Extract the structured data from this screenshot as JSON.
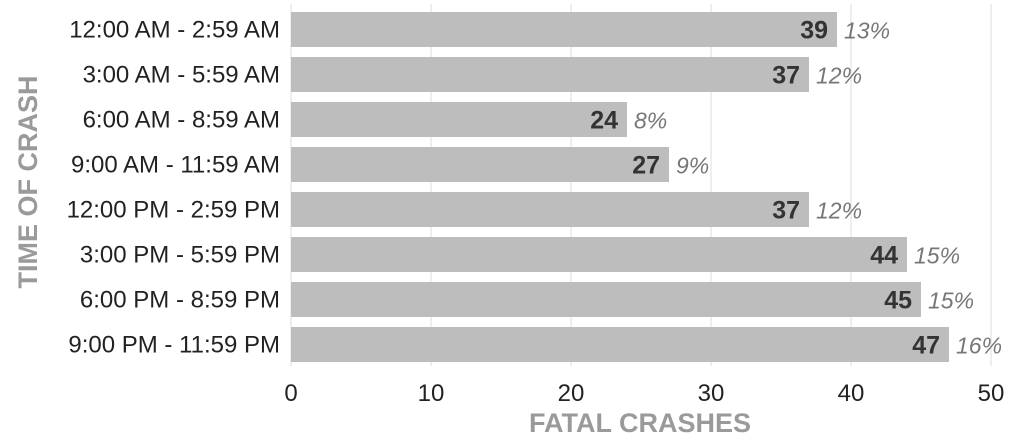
{
  "chart_data": {
    "type": "bar",
    "orientation": "horizontal",
    "categories": [
      "12:00 AM - 2:59 AM",
      "3:00 AM - 5:59 AM",
      "6:00 AM - 8:59 AM",
      "9:00 AM - 11:59 AM",
      "12:00 PM - 2:59 PM",
      "3:00 PM - 5:59 PM",
      "6:00 PM - 8:59 PM",
      "9:00 PM - 11:59 PM"
    ],
    "values": [
      39,
      37,
      24,
      27,
      37,
      44,
      45,
      47
    ],
    "value_labels": [
      "39",
      "37",
      "24",
      "27",
      "37",
      "44",
      "45",
      "47"
    ],
    "percent_labels": [
      "13%",
      "12%",
      "8%",
      "9%",
      "12%",
      "15%",
      "15%",
      "16%"
    ],
    "xlabel": "FATAL CRASHES",
    "ylabel": "TIME OF CRASH",
    "xlim": [
      0,
      50
    ],
    "xticks": [
      0,
      10,
      20,
      30,
      40,
      50
    ],
    "xtick_labels": [
      "0",
      "10",
      "20",
      "30",
      "40",
      "50"
    ],
    "grid": "vertical",
    "legend": "none",
    "colors": {
      "bar": "#bdbdbe",
      "grid": "#dddddd",
      "axis_title": "#9a9a9a",
      "value_label": "#333333",
      "percent_label": "#777777"
    }
  }
}
